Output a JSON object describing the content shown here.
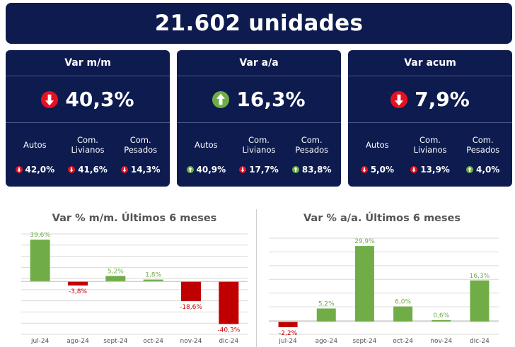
{
  "header": {
    "title": "21.602 unidades"
  },
  "cards": [
    {
      "title": "Var m/m",
      "value": "40,3%",
      "direction": "down",
      "cols": [
        {
          "label": "Autos",
          "value": "42,0%",
          "direction": "down"
        },
        {
          "label": "Com. Livianos",
          "value": "41,6%",
          "direction": "down"
        },
        {
          "label": "Com. Pesados",
          "value": "14,3%",
          "direction": "down"
        }
      ]
    },
    {
      "title": "Var a/a",
      "value": "16,3%",
      "direction": "up",
      "cols": [
        {
          "label": "Autos",
          "value": "40,9%",
          "direction": "up"
        },
        {
          "label": "Com. Livianos",
          "value": "17,7%",
          "direction": "down"
        },
        {
          "label": "Com. Pesados",
          "value": "83,8%",
          "direction": "up"
        }
      ]
    },
    {
      "title": "Var acum",
      "value": "7,9%",
      "direction": "down",
      "cols": [
        {
          "label": "Autos",
          "value": "5,0%",
          "direction": "down"
        },
        {
          "label": "Com. Livianos",
          "value": "13,9%",
          "direction": "down"
        },
        {
          "label": "Com. Pesados",
          "value": "4,0%",
          "direction": "up"
        }
      ]
    }
  ],
  "colors": {
    "navy": "#0d1b4f",
    "positive": "#70ad47",
    "negative": "#c00000",
    "up_arrow": "#70ad47",
    "down_arrow": "#e8101f"
  },
  "chart_data": [
    {
      "type": "bar",
      "title": "Var % m/m. Últimos 6 meses",
      "categories": [
        "jul-24",
        "ago-24",
        "sept-24",
        "oct-24",
        "nov-24",
        "dic-24"
      ],
      "values": [
        39.6,
        -3.8,
        5.2,
        1.8,
        -18.6,
        -40.3
      ],
      "labels": [
        "39,6%",
        "-3,8%",
        "5,2%",
        "1,8%",
        "-18,6%",
        "-40,3%"
      ],
      "ylim": [
        -50,
        45
      ],
      "grid": true
    },
    {
      "type": "bar",
      "title": "Var % a/a. Últimos 6 meses",
      "categories": [
        "jul-24",
        "ago-24",
        "sept-24",
        "oct-24",
        "nov-24",
        "dic-24"
      ],
      "values": [
        -2.2,
        5.2,
        29.9,
        6.0,
        0.6,
        16.3
      ],
      "labels": [
        "-2,2%",
        "5,2%",
        "29,9%",
        "6,0%",
        "0,6%",
        "16,3%"
      ],
      "ylim": [
        -5,
        33
      ],
      "grid": true
    }
  ]
}
